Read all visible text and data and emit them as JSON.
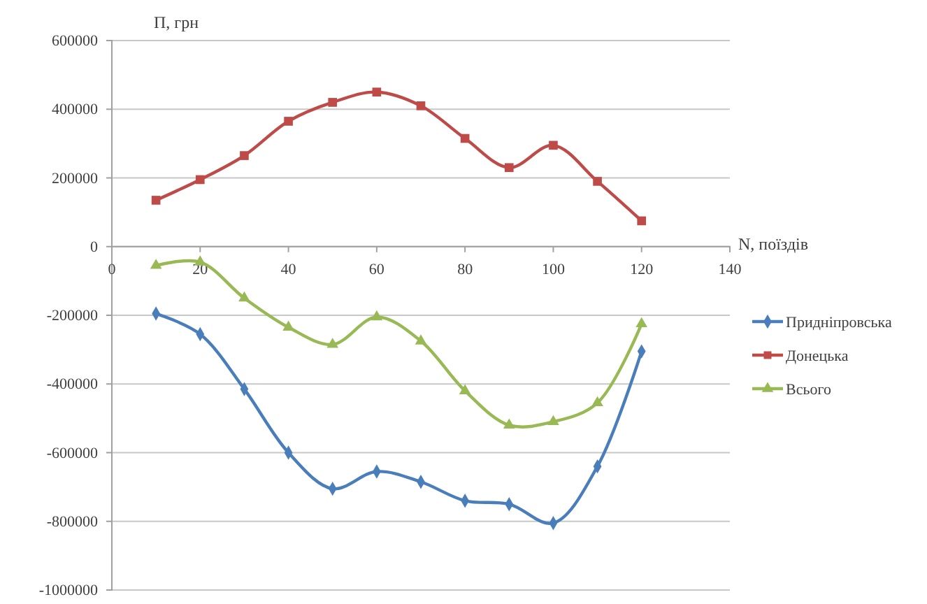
{
  "chart_data": {
    "type": "line",
    "ylabel": "П, грн",
    "xlabel": "N, поїздів",
    "x": [
      10,
      20,
      30,
      40,
      50,
      60,
      70,
      80,
      90,
      100,
      110,
      120
    ],
    "series": [
      {
        "name": "Придніпровська",
        "color": "#4a7ebb",
        "marker": "diamond",
        "values": [
          -195000,
          -255000,
          -415000,
          -600000,
          -705000,
          -655000,
          -685000,
          -740000,
          -750000,
          -805000,
          -640000,
          -305000
        ]
      },
      {
        "name": "Донецька",
        "color": "#be4b48",
        "marker": "square",
        "values": [
          135000,
          195000,
          265000,
          365000,
          420000,
          450000,
          410000,
          315000,
          230000,
          295000,
          190000,
          75000
        ]
      },
      {
        "name": "Всього",
        "color": "#98b954",
        "marker": "triangle",
        "values": [
          -55000,
          -45000,
          -150000,
          -235000,
          -285000,
          -205000,
          -275000,
          -420000,
          -520000,
          -510000,
          -455000,
          -225000
        ]
      }
    ],
    "xlim": [
      0,
      140
    ],
    "xticks": [
      0,
      20,
      40,
      60,
      80,
      100,
      120,
      140
    ],
    "ylim": [
      -1000000,
      600000
    ],
    "yticks": [
      -1000000,
      -800000,
      -600000,
      -400000,
      -200000,
      0,
      200000,
      400000,
      600000
    ],
    "grid": "y",
    "legend": "right"
  }
}
